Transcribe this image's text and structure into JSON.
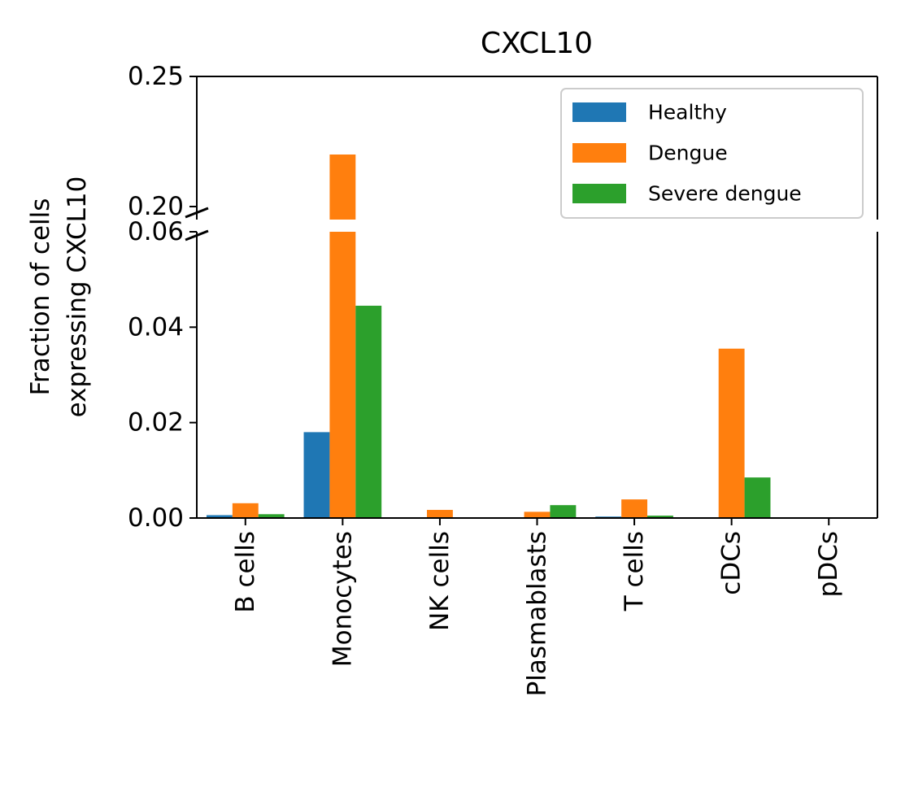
{
  "chart_data": {
    "type": "bar",
    "title": "CXCL10",
    "xlabel": "",
    "ylabel": [
      "Fraction of cells",
      "expressing CXCL10"
    ],
    "categories": [
      "B cells",
      "Monocytes",
      "NK cells",
      "Plasmablasts",
      "T cells",
      "cDCs",
      "pDCs"
    ],
    "series": [
      {
        "name": "Healthy",
        "color": "#1f77b4",
        "values": [
          0.0006,
          0.018,
          0.0,
          0.0,
          0.0003,
          0.0,
          0.0
        ]
      },
      {
        "name": "Dengue",
        "color": "#ff7f0e",
        "values": [
          0.0031,
          0.22,
          0.0017,
          0.0013,
          0.0039,
          0.0355,
          0.0
        ]
      },
      {
        "name": "Severe dengue",
        "color": "#2ca02c",
        "values": [
          0.0008,
          0.0445,
          0.0,
          0.0027,
          0.0005,
          0.0085,
          0.0
        ]
      }
    ],
    "broken_axis": true,
    "ylim_lower": [
      0,
      0.06
    ],
    "ylim_upper": [
      0.195,
      0.25
    ],
    "yticks_lower": [
      "0.00",
      "0.02",
      "0.04",
      "0.06"
    ],
    "yticks_upper": [
      "0.20",
      "0.25"
    ],
    "legend_position": "top-right",
    "grid": false
  }
}
